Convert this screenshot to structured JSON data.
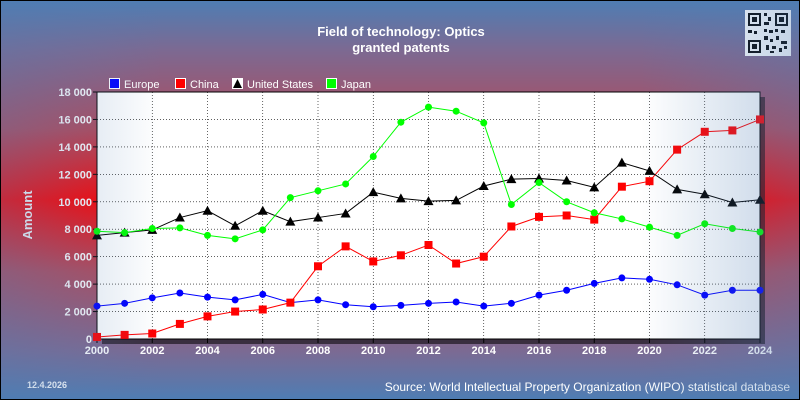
{
  "date": "12.4.2026",
  "source": "Source: World Intellectual Property Organization (WIPO) statistical database",
  "chart_data": {
    "type": "line",
    "title": "Field of technology: Optics",
    "subtitle": "granted patents",
    "ylabel": "Amount",
    "xlabel": "",
    "xlim": [
      2000,
      2024
    ],
    "ylim": [
      0,
      18000
    ],
    "xticks": [
      2000,
      2002,
      2004,
      2006,
      2008,
      2010,
      2012,
      2014,
      2016,
      2018,
      2020,
      2022,
      2024
    ],
    "yticks": [
      0,
      2000,
      4000,
      6000,
      8000,
      10000,
      12000,
      14000,
      16000,
      18000
    ],
    "ytick_labels": [
      "0",
      "2 000",
      "4 000",
      "6 000",
      "8 000",
      "10 000",
      "12 000",
      "14 000",
      "16 000",
      "18 000"
    ],
    "grid": true,
    "legend_position": "top-left",
    "x": [
      2000,
      2001,
      2002,
      2003,
      2004,
      2005,
      2006,
      2007,
      2008,
      2009,
      2010,
      2011,
      2012,
      2013,
      2014,
      2015,
      2016,
      2017,
      2018,
      2019,
      2020,
      2021,
      2022,
      2023,
      2024
    ],
    "series": [
      {
        "name": "Europe",
        "color": "#0000ff",
        "marker": "circle",
        "values": [
          2400,
          2600,
          3000,
          3350,
          3050,
          2850,
          3250,
          2650,
          2850,
          2500,
          2350,
          2450,
          2600,
          2700,
          2400,
          2600,
          3200,
          3550,
          4050,
          4450,
          4350,
          3950,
          3200,
          3550,
          3550
        ]
      },
      {
        "name": "China",
        "color": "#ff0000",
        "marker": "square",
        "values": [
          150,
          300,
          400,
          1100,
          1650,
          2000,
          2150,
          2650,
          5300,
          6750,
          5650,
          6100,
          6850,
          5500,
          6000,
          8200,
          8900,
          9000,
          8700,
          11100,
          11500,
          13800,
          15100,
          15200,
          16000
        ]
      },
      {
        "name": "United States",
        "color": "#000000",
        "marker": "triangle",
        "values": [
          7550,
          7750,
          7950,
          8850,
          9350,
          8250,
          9350,
          8550,
          8850,
          9150,
          10700,
          10250,
          10050,
          10100,
          11150,
          11650,
          11700,
          11550,
          11050,
          12850,
          12250,
          10900,
          10550,
          9950,
          10150
        ]
      },
      {
        "name": "Japan",
        "color": "#00ff00",
        "marker": "circle",
        "values": [
          7850,
          7750,
          8050,
          8100,
          7550,
          7300,
          7950,
          10300,
          10800,
          11300,
          13300,
          15800,
          16900,
          16600,
          15750,
          9800,
          11400,
          10000,
          9200,
          8750,
          8150,
          7550,
          8400,
          8050,
          7800
        ]
      }
    ]
  }
}
